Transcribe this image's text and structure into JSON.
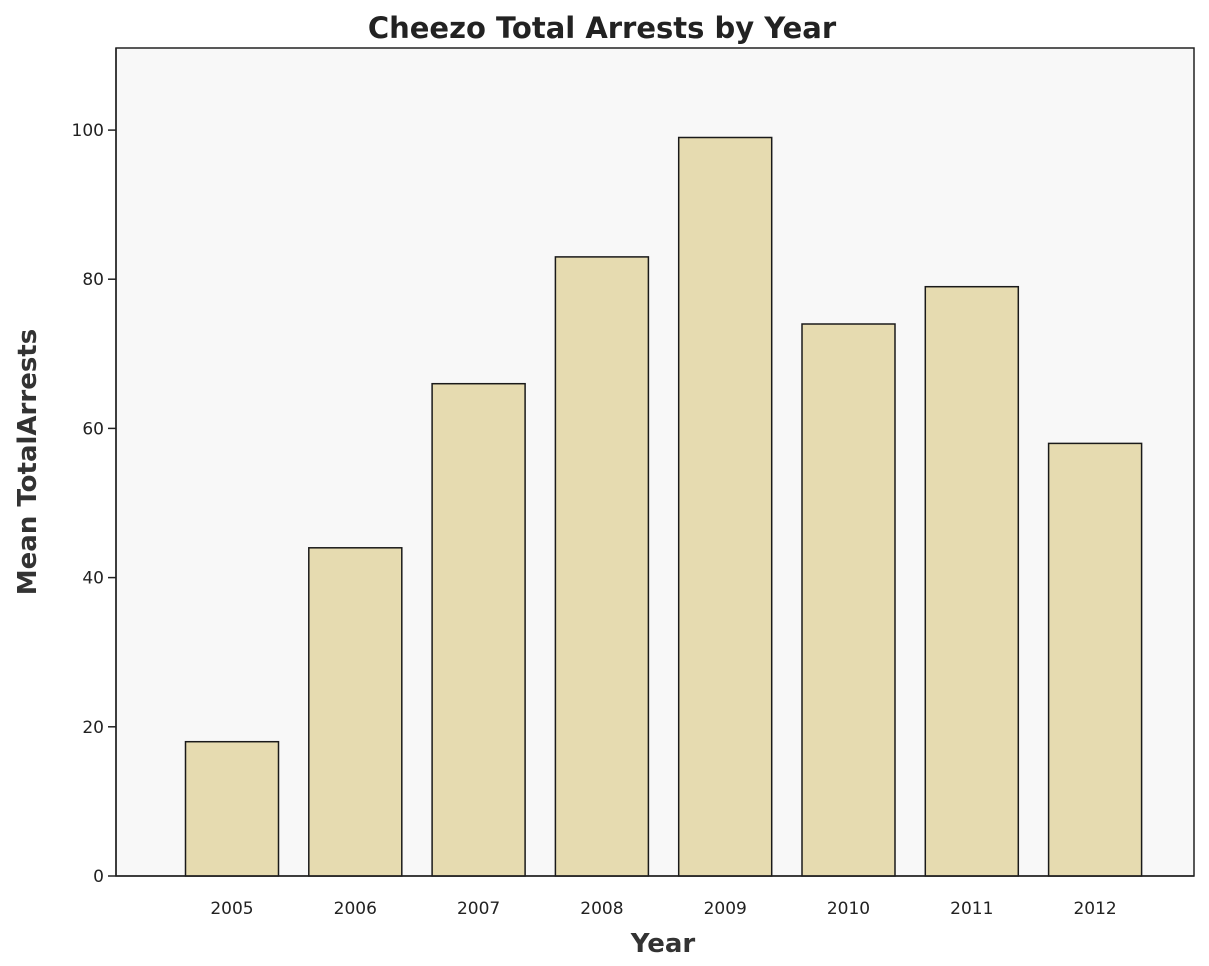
{
  "chart_data": {
    "type": "bar",
    "title": "Cheezo Total Arrests by Year",
    "xlabel": "Year",
    "ylabel": "Mean TotalArrests",
    "categories": [
      "2005",
      "2006",
      "2007",
      "2008",
      "2009",
      "2010",
      "2011",
      "2012"
    ],
    "values": [
      18,
      44,
      66,
      83,
      99,
      74,
      79,
      58
    ],
    "ylim": [
      0,
      111
    ],
    "yticks": [
      "0",
      "20",
      "40",
      "60",
      "80",
      "100"
    ],
    "grid": false,
    "colors": {
      "bar_fill": "#e6dbb0",
      "bar_stroke": "#1a1a1a",
      "plot_background": "#f8f8f8"
    }
  }
}
